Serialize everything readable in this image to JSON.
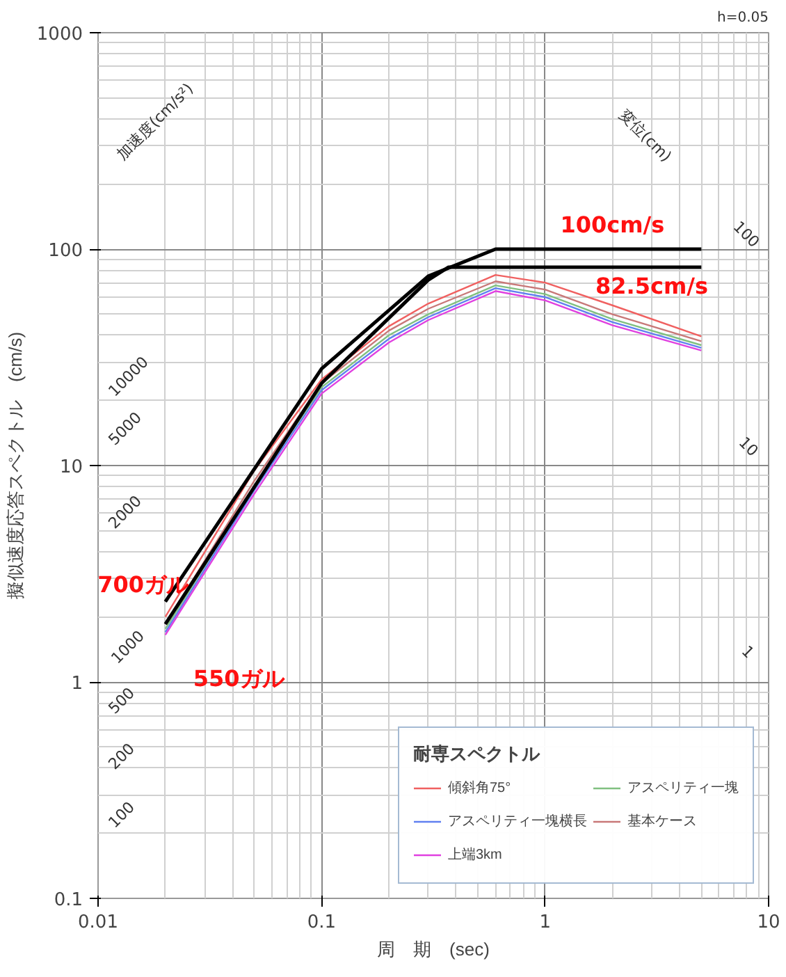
{
  "chart_data": {
    "type": "line",
    "xlabel": "周　期　(sec)",
    "ylabel": "擬似速度応答スペクトル　(cm/s)",
    "log": "xy",
    "grid": true,
    "legend": "bottom right",
    "legend_title": "耐専スペクトル",
    "xlim": [
      0.01,
      10
    ],
    "ylim": [
      0.1,
      1000
    ],
    "xticks": [
      0.01,
      0.1,
      1,
      10
    ],
    "yticks": [
      0.1,
      1,
      10,
      100,
      1000
    ],
    "x": [
      0.02,
      0.05,
      0.1,
      0.2,
      0.3,
      0.6,
      1,
      2,
      5
    ],
    "series": [
      {
        "name": "傾斜角75°",
        "color": "#f06060",
        "values": [
          2.0,
          9.5,
          25,
          44,
          56,
          76,
          70,
          55,
          39.5
        ]
      },
      {
        "name": "アスペリティ一塊横長",
        "color": "#6080f0",
        "values": [
          1.7,
          7.7,
          22.3,
          38.5,
          48.5,
          66,
          60,
          46,
          35
        ]
      },
      {
        "name": "上端3km",
        "color": "#e040e0",
        "values": [
          1.65,
          7.4,
          21.5,
          37,
          47,
          64,
          58,
          44.5,
          34
        ]
      },
      {
        "name": "アスペリティ一塊",
        "color": "#80c080",
        "values": [
          1.76,
          8.0,
          23,
          40,
          50,
          68,
          62,
          47.5,
          36
        ]
      },
      {
        "name": "基本ケース",
        "color": "#c87878",
        "values": [
          1.85,
          8.5,
          24,
          42,
          53,
          71,
          65,
          50,
          37.5
        ]
      },
      {
        "color": "#000000",
        "x": [
          0.02,
          0.1,
          0.3,
          0.6,
          5
        ],
        "values": [
          2.35,
          28,
          75,
          100,
          100
        ]
      },
      {
        "color": "#000000",
        "x": [
          0.02,
          0.1,
          0.3,
          0.37,
          5
        ],
        "values": [
          1.85,
          24,
          72,
          82.5,
          82.5
        ]
      }
    ],
    "annotations": [
      "h=0.05",
      "加速度(cm/s²)",
      "変位(cm)",
      "10000",
      "5000",
      "2000",
      "1000",
      "500",
      "200",
      "100",
      "100",
      "10",
      "1",
      {
        "text": "100cm/s",
        "x": 2,
        "y": 100
      },
      {
        "text": "82.5cm/s",
        "x": 3,
        "y": 82.5
      },
      {
        "text": "700ガル",
        "x": 0.02,
        "y": 2.35
      },
      {
        "text": "550ガル",
        "x": 0.02,
        "y": 1.65
      }
    ]
  }
}
